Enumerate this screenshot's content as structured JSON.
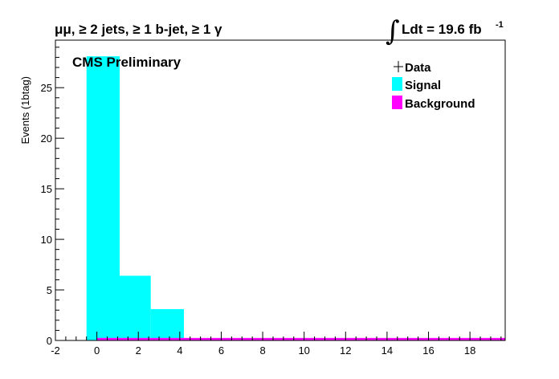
{
  "chart_data": {
    "type": "bar",
    "title": "μμ, ≥ 2 jets, ≥ 1 b-jet, ≥ 1 γ",
    "lumi_label": "Ldt = 19.6 fb",
    "lumi_exponent": "-1",
    "annotation": "CMS Preliminary",
    "ylabel": "Events (1btag)",
    "xlabel": "",
    "xlim": [
      -2,
      19.7
    ],
    "ylim": [
      0,
      29.7
    ],
    "x_ticks": [
      "-2",
      "0",
      "2",
      "4",
      "6",
      "8",
      "10",
      "12",
      "14",
      "16",
      "18"
    ],
    "y_ticks": [
      "0",
      "5",
      "10",
      "15",
      "20",
      "25"
    ],
    "legend_position": "top-right",
    "grid": false,
    "series": [
      {
        "name": "Signal",
        "color": "#00ffff",
        "bins": [
          {
            "x0": -0.5,
            "x1": 1.1,
            "value": 28.1
          },
          {
            "x0": 1.1,
            "x1": 2.6,
            "value": 6.4
          },
          {
            "x0": 2.6,
            "x1": 4.2,
            "value": 3.1
          }
        ]
      },
      {
        "name": "Background",
        "color": "#ff00ff",
        "bins": [
          {
            "x0": 0.0,
            "x1": 19.7,
            "value": 0.25
          }
        ]
      }
    ],
    "data_points": [],
    "legend": [
      "Data",
      "Signal",
      "Background"
    ]
  }
}
